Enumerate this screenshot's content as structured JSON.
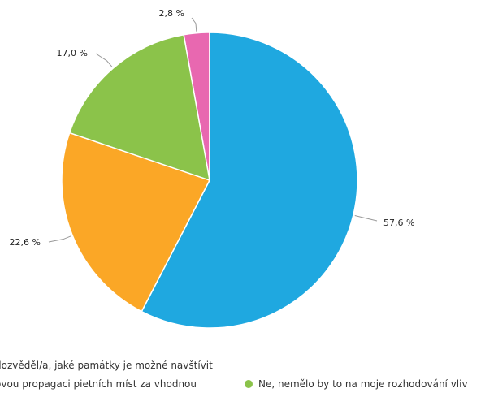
{
  "chart_data": {
    "type": "pie",
    "title": "",
    "slices": [
      {
        "label": "2,8 %",
        "value": 2.8,
        "color": "#e868b0"
      },
      {
        "label": "57,6 %",
        "value": 57.6,
        "color": "#1fa8e0"
      },
      {
        "label": "22,6 %",
        "value": 22.6,
        "color": "#fba726"
      },
      {
        "label": "17,0 %",
        "value": 17.0,
        "color": "#8bc34a"
      }
    ],
    "legend": [
      {
        "text": "dozvěděl/a, jaké památky je možné navštívit",
        "color": ""
      },
      {
        "text": "ovou propagaci pietních míst za vhodnou",
        "color": ""
      },
      {
        "text": "Ne, nemělo by to na moje rozhodování vliv",
        "color": "#8bc34a"
      }
    ]
  }
}
